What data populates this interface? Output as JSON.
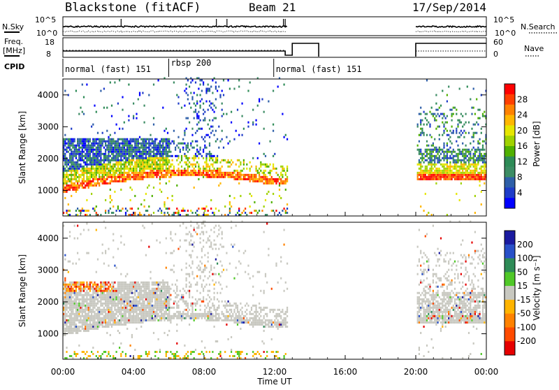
{
  "header": {
    "station": "Blackstone (fitACF)",
    "beam": "Beam 21",
    "date": "17/Sep/2014"
  },
  "top_strip": {
    "nsky_label": "N.Sky",
    "nsky_ticks": [
      "10^5",
      "10^0"
    ],
    "nsearch_label": "N.Search",
    "nsearch_ticks": [
      "10^5",
      "10^0"
    ],
    "freq_label_line1": "Freq.",
    "freq_label_line2": "[MHz]",
    "freq_ticks": [
      "18",
      "8"
    ],
    "nave_label": "Nave",
    "nave_ticks": [
      "60",
      "0"
    ],
    "cpid_label": "CPID",
    "cpid_segments": [
      {
        "label": "normal (fast) 151",
        "start_h": 0.0,
        "end_h": 6.0
      },
      {
        "label": "rbsp 200",
        "start_h": 6.0,
        "end_h": 11.95
      },
      {
        "label": "normal (fast) 151",
        "start_h": 11.95,
        "end_h": 24.0
      }
    ]
  },
  "chart_data": [
    {
      "type": "heatmap",
      "panel": "power",
      "ylabel": "Slant Range [km]",
      "xlabel": "",
      "x_ticks": [
        "00:00",
        "04:00",
        "08:00",
        "12:00",
        "16:00",
        "20:00",
        "00:00"
      ],
      "x_tick_hours": [
        0,
        4,
        8,
        12,
        16,
        20,
        24
      ],
      "xlim_hours": [
        0,
        24
      ],
      "ylim": [
        200,
        4500
      ],
      "y_ticks": [
        1000,
        2000,
        3000,
        4000
      ],
      "colorbar_label": "Power [dB]",
      "colorbar_ticks": [
        "28",
        "24",
        "20",
        "16",
        "12",
        "8",
        "4"
      ],
      "colorbar_colors": [
        "#ff0000",
        "#ff3f00",
        "#ff8200",
        "#ffb700",
        "#e6e600",
        "#a0d200",
        "#50b000",
        "#2e8b57",
        "#3c8c64",
        "#2e5fa8",
        "#1e3cc8",
        "#0000ff"
      ],
      "data_gaps_hours": [
        [
          12.75,
          20.0
        ]
      ]
    },
    {
      "type": "heatmap",
      "panel": "velocity",
      "ylabel": "Slant Range [km]",
      "xlabel": "Time UT",
      "x_ticks": [
        "00:00",
        "04:00",
        "08:00",
        "12:00",
        "16:00",
        "20:00",
        "00:00"
      ],
      "x_tick_hours": [
        0,
        4,
        8,
        12,
        16,
        20,
        24
      ],
      "xlim_hours": [
        0,
        24
      ],
      "ylim": [
        200,
        4500
      ],
      "y_ticks": [
        1000,
        2000,
        3000,
        4000
      ],
      "colorbar_label": "Velocity [m s⁻¹]",
      "colorbar_ticks": [
        "200",
        "100",
        "50",
        "15",
        "-15",
        "-50",
        "-100",
        "-200"
      ],
      "colorbar_colors": [
        "#1a1aa0",
        "#2850c8",
        "#2e8b57",
        "#50c828",
        "#c8c8c0",
        "#ffb400",
        "#ff8200",
        "#ff4b00",
        "#e60000"
      ],
      "data_gaps_hours": [
        [
          12.75,
          20.0
        ]
      ]
    }
  ]
}
